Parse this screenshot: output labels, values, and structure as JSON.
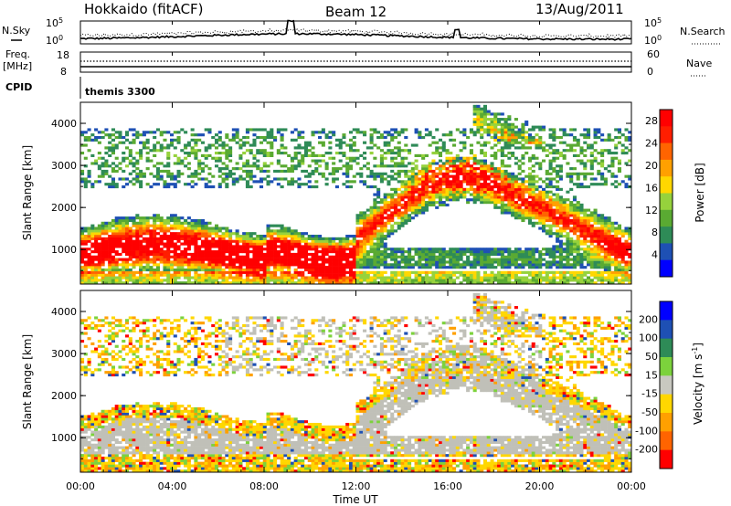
{
  "header": {
    "station": "Hokkaido (fitACF)",
    "beam": "Beam 12",
    "date": "13/Aug/2011"
  },
  "top_panels": {
    "nsky_label": "N.Sky",
    "nsky_ticks": [
      "10^5",
      "10^0"
    ],
    "nsearch_label": "N.Search",
    "freq_label": "Freq.",
    "freq_unit": "[MHz]",
    "freq_ticks": [
      "18",
      "8"
    ],
    "nave_label": "Nave",
    "nave_ticks": [
      "60",
      "0"
    ],
    "cpid_label": "CPID",
    "cpid_value": "themis 3300"
  },
  "colors": {
    "power_scale": [
      "#0000ff",
      "#1e50b4",
      "#2e8b57",
      "#5aaa32",
      "#96d23c",
      "#ffd700",
      "#ffa000",
      "#ff6400",
      "#ff1e00",
      "#ff0000"
    ],
    "velocity_scale": [
      "#0000ff",
      "#1e50b4",
      "#2e8b57",
      "#7cd23c",
      "#c8c8c0",
      "#ffd700",
      "#ffa000",
      "#ff6400",
      "#ff0000"
    ],
    "ground_scatter": "#c0c0b8"
  },
  "chart_data": [
    {
      "type": "heatmap",
      "panel": "power",
      "ylabel": "Slant Range [km]",
      "ylim": [
        180,
        4500
      ],
      "xlim": [
        "00:00",
        "24:00"
      ],
      "y_ticks": [
        "1000",
        "2000",
        "3000",
        "4000"
      ],
      "colorbar_label": "Power [dB]",
      "colorbar_ticks": [
        "4",
        "8",
        "12",
        "16",
        "20",
        "24",
        "28"
      ],
      "value_range": [
        0,
        30
      ]
    },
    {
      "type": "heatmap",
      "panel": "velocity",
      "ylabel": "Slant Range [km]",
      "ylim": [
        180,
        4500
      ],
      "xlim": [
        "00:00",
        "24:00"
      ],
      "y_ticks": [
        "1000",
        "2000",
        "3000",
        "4000"
      ],
      "colorbar_label": "Velocity [m s^-1]",
      "colorbar_ticks": [
        "200",
        "100",
        "50",
        "15",
        "-15",
        "-50",
        "-100",
        "-200"
      ],
      "value_range": [
        -250,
        250
      ]
    }
  ],
  "x_axis": {
    "xlabel": "Time UT",
    "ticks": [
      "00:00",
      "04:00",
      "08:00",
      "12:00",
      "16:00",
      "20:00",
      "00:00"
    ]
  }
}
